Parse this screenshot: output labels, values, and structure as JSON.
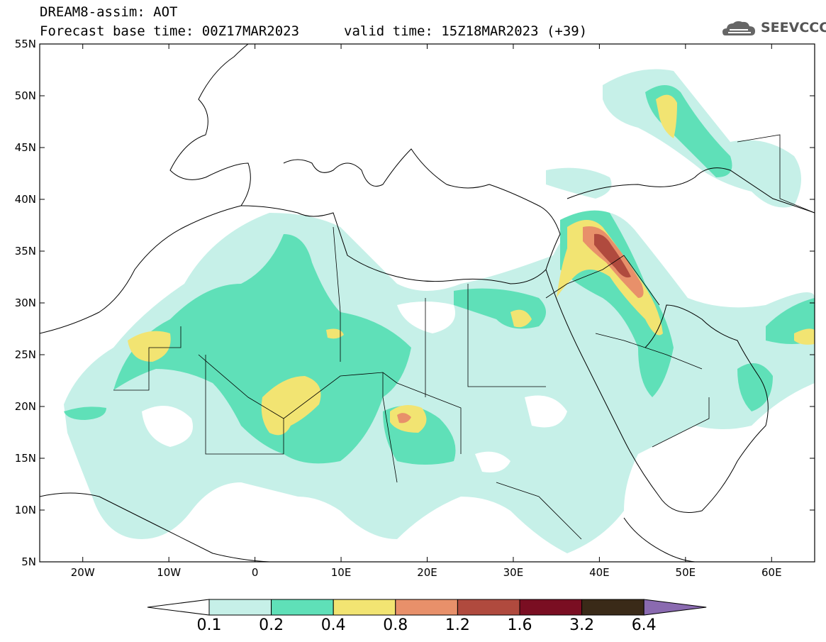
{
  "title": {
    "line1": "DREAM8-assim: AOT",
    "line2": "Forecast base time: 00Z17MAR2023",
    "valid": "valid time: 15Z18MAR2023 (+39)"
  },
  "logo": {
    "text": "SEEVCCC",
    "icon": "cloud-icon"
  },
  "map": {
    "lon_range": [
      -25,
      65
    ],
    "lat_range": [
      5,
      55
    ],
    "x_ticks": [
      {
        "lon": -20,
        "label": "20W"
      },
      {
        "lon": -10,
        "label": "10W"
      },
      {
        "lon": 0,
        "label": "0"
      },
      {
        "lon": 10,
        "label": "10E"
      },
      {
        "lon": 20,
        "label": "20E"
      },
      {
        "lon": 30,
        "label": "30E"
      },
      {
        "lon": 40,
        "label": "40E"
      },
      {
        "lon": 50,
        "label": "50E"
      },
      {
        "lon": 60,
        "label": "60E"
      }
    ],
    "y_ticks": [
      {
        "lat": 55,
        "label": "55N"
      },
      {
        "lat": 50,
        "label": "50N"
      },
      {
        "lat": 45,
        "label": "45N"
      },
      {
        "lat": 40,
        "label": "40N"
      },
      {
        "lat": 35,
        "label": "35N"
      },
      {
        "lat": 30,
        "label": "30N"
      },
      {
        "lat": 25,
        "label": "25N"
      },
      {
        "lat": 20,
        "label": "20N"
      },
      {
        "lat": 15,
        "label": "15N"
      },
      {
        "lat": 10,
        "label": "10N"
      },
      {
        "lat": 5,
        "label": "5N"
      }
    ]
  },
  "colorbar": {
    "levels": [
      "0.1",
      "0.2",
      "0.4",
      "0.8",
      "1.2",
      "1.6",
      "3.2",
      "6.4"
    ],
    "colors": [
      "#ffffff",
      "#c6f0e8",
      "#5fe0b8",
      "#f2e472",
      "#e8906a",
      "#b04a3e",
      "#7a0e22",
      "#3a2a18",
      "#8a6ab0"
    ]
  }
}
